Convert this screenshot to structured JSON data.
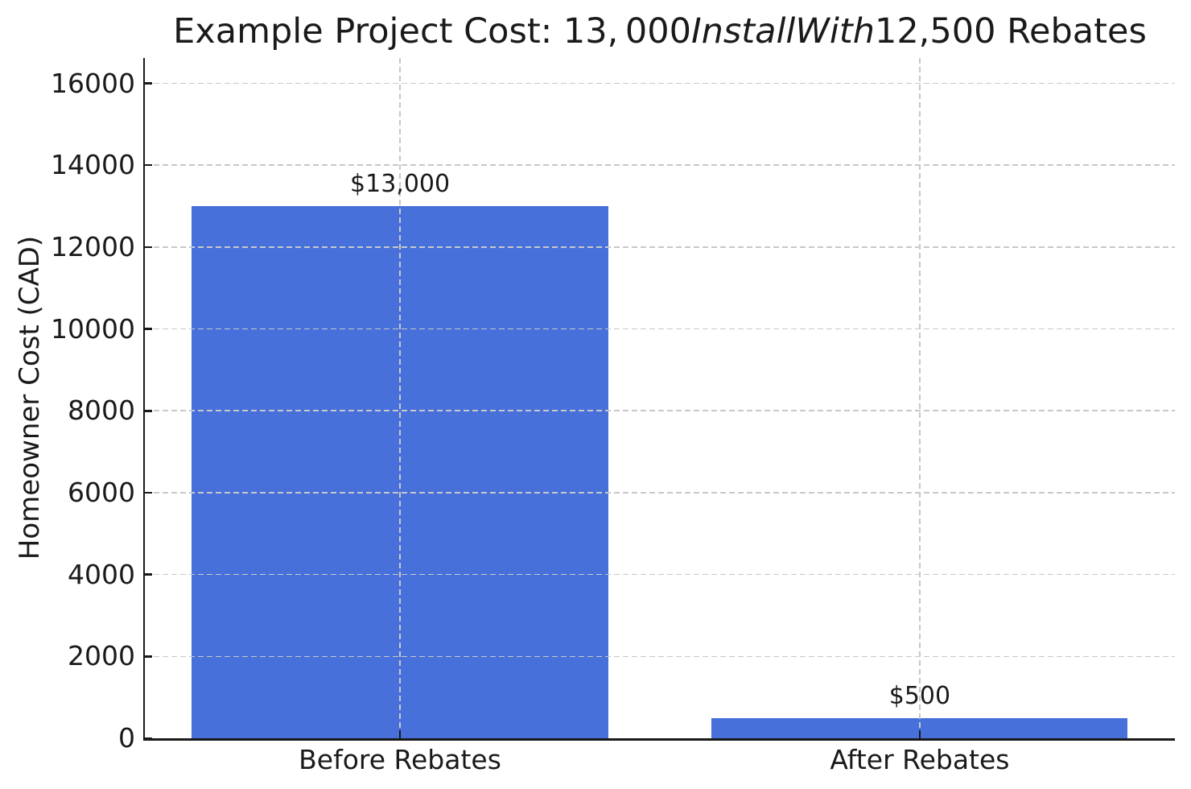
{
  "chart_data": {
    "type": "bar",
    "title": "Example Project Cost: 13, 000InstallWith12,500 Rebates",
    "title_parts": [
      {
        "text": "Example Project Cost: 13, 000",
        "italic": false
      },
      {
        "text": "InstallWith",
        "italic": true
      },
      {
        "text": "12,500 Rebates",
        "italic": false
      }
    ],
    "categories": [
      "Before Rebates",
      "After Rebates"
    ],
    "values": [
      13000,
      500
    ],
    "bar_labels": [
      "$13,000",
      "$500"
    ],
    "xlabel": "",
    "ylabel": "Homeowner Cost (CAD)",
    "yticks": [
      0,
      2000,
      4000,
      6000,
      8000,
      10000,
      12000,
      14000,
      16000
    ],
    "ylim": [
      0,
      16620
    ],
    "grid": true,
    "grid_style": "dashed",
    "legend": "none",
    "colors": {
      "bar": "#4770DB",
      "grid": "#c8c8c8",
      "axis": "#1a1a1a",
      "text": "#1a1a1a",
      "background": "#ffffff"
    }
  }
}
